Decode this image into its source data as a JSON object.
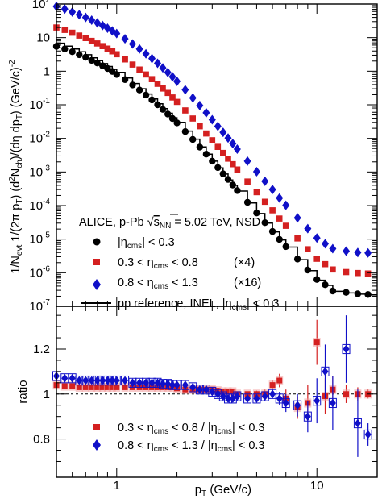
{
  "chart_data": [
    {
      "type": "scatter",
      "panel": "spectra",
      "x_scale": "log",
      "y_scale": "log",
      "xlim": [
        0.5,
        20
      ],
      "ylim": [
        1e-07,
        100
      ],
      "ylabel_parts": {
        "main": "1/N",
        "sub1": "evt",
        "mid1": " 1/(2π p",
        "sub2": "T",
        "mid2": ") (d",
        "sup1": "2",
        "mid3": "N",
        "sub3": "ch",
        "mid4": ")/(dη dp",
        "sub4": "T",
        "mid5": ") (GeV/c)",
        "sup2": "-2"
      },
      "y_tick_labels": [
        {
          "v": 1e-07,
          "base": "10",
          "exp": "-7"
        },
        {
          "v": 1e-06,
          "base": "10",
          "exp": "-6"
        },
        {
          "v": 1e-05,
          "base": "10",
          "exp": "-5"
        },
        {
          "v": 0.0001,
          "base": "10",
          "exp": "-4"
        },
        {
          "v": 0.001,
          "base": "10",
          "exp": "-3"
        },
        {
          "v": 0.01,
          "base": "10",
          "exp": "-2"
        },
        {
          "v": 0.1,
          "base": "10",
          "exp": "-1"
        },
        {
          "v": 1,
          "base": "1",
          "exp": ""
        },
        {
          "v": 10,
          "base": "10",
          "exp": ""
        },
        {
          "v": 100,
          "base": "10",
          "exp": "2"
        }
      ],
      "legend": {
        "title_pre": "ALICE, p-Pb ",
        "title_sqrt": "s",
        "title_sub": "NN",
        "title_post": " = 5.02 TeV, NSD",
        "entries": [
          {
            "marker": "circle",
            "color": "#000000",
            "label_pre": "|η",
            "label_sub": "cms",
            "label_post": "| < 0.3",
            "factor": ""
          },
          {
            "marker": "square",
            "color": "#d42020",
            "label_pre": "0.3 < η",
            "label_sub": "cms",
            "label_post": " < 0.8",
            "factor": "(×4)"
          },
          {
            "marker": "diamond",
            "color": "#1010c8",
            "label_pre": "0.8 < η",
            "label_sub": "cms",
            "label_post": " < 1.3",
            "factor": "(×16)"
          },
          {
            "marker": "line",
            "color": "#000000",
            "label_pre": "pp reference, INEL, |η",
            "label_sub": "cms",
            "label_post": "| < 0.3",
            "factor": ""
          }
        ]
      },
      "series": [
        {
          "name": "|ηcms| < 0.3",
          "color": "#000000",
          "marker": "circle",
          "x": [
            0.5,
            0.55,
            0.6,
            0.65,
            0.7,
            0.75,
            0.8,
            0.85,
            0.9,
            0.95,
            1.0,
            1.1,
            1.2,
            1.3,
            1.4,
            1.5,
            1.6,
            1.7,
            1.8,
            1.9,
            2.0,
            2.2,
            2.4,
            2.6,
            2.8,
            3.0,
            3.2,
            3.4,
            3.6,
            3.8,
            4.0,
            4.5,
            5.0,
            5.5,
            6.0,
            6.5,
            7.0,
            8.0,
            9.0,
            10.0,
            11.0,
            12.0,
            14.0,
            16.0,
            18.0
          ],
          "y": [
            5.5,
            4.6,
            3.8,
            3.1,
            2.6,
            2.1,
            1.75,
            1.45,
            1.2,
            0.98,
            0.8,
            0.56,
            0.39,
            0.275,
            0.195,
            0.14,
            0.1,
            0.073,
            0.053,
            0.039,
            0.029,
            0.016,
            0.0093,
            0.0055,
            0.0034,
            0.0021,
            0.00135,
            0.00088,
            0.0006,
            0.00041,
            0.00028,
            0.000125,
            6e-05,
            3.1e-05,
            1.7e-05,
            9.8e-06,
            6e-06,
            2.55e-06,
            1.2e-06,
            6.3e-07,
            4.4e-07,
            2.85e-07,
            2.6e-07,
            2.35e-07,
            2.25e-07
          ]
        },
        {
          "name": "0.3 < ηcms < 0.8 (×4)",
          "color": "#d42020",
          "marker": "square",
          "x": [
            0.5,
            0.55,
            0.6,
            0.65,
            0.7,
            0.75,
            0.8,
            0.85,
            0.9,
            0.95,
            1.0,
            1.1,
            1.2,
            1.3,
            1.4,
            1.5,
            1.6,
            1.7,
            1.8,
            1.9,
            2.0,
            2.2,
            2.4,
            2.6,
            2.8,
            3.0,
            3.2,
            3.4,
            3.6,
            3.8,
            4.0,
            4.5,
            5.0,
            5.5,
            6.0,
            6.5,
            7.0,
            8.0,
            9.0,
            10.0,
            11.0,
            12.0,
            14.0,
            16.0,
            18.0
          ],
          "y": [
            20,
            17,
            14,
            11.5,
            9.7,
            8.0,
            6.7,
            5.6,
            4.7,
            3.9,
            3.2,
            2.25,
            1.58,
            1.12,
            0.8,
            0.58,
            0.42,
            0.305,
            0.225,
            0.165,
            0.122,
            0.068,
            0.039,
            0.023,
            0.014,
            0.0088,
            0.0056,
            0.0037,
            0.0025,
            0.0017,
            0.00118,
            0.00052,
            0.00025,
            0.00013,
            7.2e-05,
            4.1e-05,
            2.5e-05,
            1.05e-05,
            5e-06,
            2.6e-06,
            1.8e-06,
            1.25e-06,
            1.05e-06,
            9.8e-07,
            9.5e-07
          ]
        },
        {
          "name": "0.8 < ηcms < 1.3 (×16)",
          "color": "#1010c8",
          "marker": "diamond",
          "x": [
            0.5,
            0.55,
            0.6,
            0.65,
            0.7,
            0.75,
            0.8,
            0.85,
            0.9,
            0.95,
            1.0,
            1.1,
            1.2,
            1.3,
            1.4,
            1.5,
            1.6,
            1.7,
            1.8,
            1.9,
            2.0,
            2.2,
            2.4,
            2.6,
            2.8,
            3.0,
            3.2,
            3.4,
            3.6,
            3.8,
            4.0,
            4.5,
            5.0,
            5.5,
            6.0,
            6.5,
            7.0,
            8.0,
            9.0,
            10.0,
            11.0,
            12.0,
            14.0,
            16.0,
            18.0
          ],
          "y": [
            85,
            71,
            58,
            48,
            40,
            33,
            27.5,
            23,
            19,
            15.8,
            13.2,
            9.2,
            6.5,
            4.6,
            3.3,
            2.38,
            1.72,
            1.25,
            0.92,
            0.68,
            0.5,
            0.28,
            0.16,
            0.095,
            0.058,
            0.036,
            0.023,
            0.0152,
            0.0102,
            0.007,
            0.0048,
            0.0021,
            0.00102,
            0.00053,
            0.0003,
            0.000168,
            0.000102,
            4.3e-05,
            2.05e-05,
            1.08e-05,
            7.3e-06,
            5.2e-06,
            4.4e-06,
            4e-06,
            3.9e-06
          ]
        },
        {
          "name": "pp reference, INEL, |ηcms| < 0.3",
          "color": "#000000",
          "marker": "line",
          "x": [
            0.5,
            0.55,
            0.6,
            0.65,
            0.7,
            0.75,
            0.8,
            0.85,
            0.9,
            0.95,
            1.0,
            1.1,
            1.2,
            1.3,
            1.4,
            1.5,
            1.6,
            1.7,
            1.8,
            1.9,
            2.0,
            2.2,
            2.4,
            2.6,
            2.8,
            3.0,
            3.2,
            3.4,
            3.6,
            3.8,
            4.0,
            4.5,
            5.0,
            5.5,
            6.0,
            6.5,
            7.0,
            8.0,
            9.0,
            10.0,
            11.0,
            12.0,
            14.0,
            16.0,
            18.0,
            20.0
          ],
          "y": [
            6.8,
            5.6,
            4.6,
            3.8,
            3.1,
            2.5,
            2.05,
            1.68,
            1.38,
            1.13,
            0.92,
            0.63,
            0.43,
            0.3,
            0.21,
            0.15,
            0.107,
            0.077,
            0.056,
            0.041,
            0.03,
            0.0165,
            0.0095,
            0.0056,
            0.0034,
            0.0021,
            0.00133,
            0.00087,
            0.00058,
            0.0004,
            0.00027,
            0.00012,
            5.8e-05,
            3e-05,
            1.65e-05,
            9.5e-06,
            5.8e-06,
            2.45e-06,
            1.15e-06,
            6e-07,
            4.2e-07,
            2.8e-07,
            2.5e-07,
            2.3e-07,
            2.2e-07,
            2.2e-07
          ]
        }
      ]
    },
    {
      "type": "scatter",
      "panel": "ratio",
      "x_scale": "log",
      "xlim": [
        0.5,
        20
      ],
      "ylim": [
        0.63,
        1.39
      ],
      "ylabel": "ratio",
      "xlabel_main": "p",
      "xlabel_sub": "T",
      "xlabel_post": " (GeV/c)",
      "x_tick_labels": [
        {
          "v": 1,
          "label": "1"
        },
        {
          "v": 10,
          "label": "10"
        }
      ],
      "y_tick_labels": [
        {
          "v": 0.8,
          "label": "0.8"
        },
        {
          "v": 1.0,
          "label": "1"
        },
        {
          "v": 1.2,
          "label": "1.2"
        }
      ],
      "reference_line": 1.0,
      "legend": {
        "entries": [
          {
            "marker": "square",
            "color": "#d42020",
            "label_pre": "0.3 < η",
            "label_sub1": "cms",
            "label_mid": " < 0.8 / |η",
            "label_sub2": "cms",
            "label_post": "| < 0.3"
          },
          {
            "marker": "diamond",
            "color": "#1010c8",
            "label_pre": "0.8 < η",
            "label_sub1": "cms",
            "label_mid": " < 1.3 / |η",
            "label_sub2": "cms",
            "label_post": "| < 0.3"
          }
        ]
      },
      "series": [
        {
          "name": "0.3 < ηcms < 0.8 / |ηcms| < 0.3",
          "color": "#d42020",
          "marker": "square",
          "x": [
            0.5,
            0.55,
            0.6,
            0.65,
            0.7,
            0.75,
            0.8,
            0.85,
            0.9,
            0.95,
            1.0,
            1.1,
            1.2,
            1.3,
            1.4,
            1.5,
            1.6,
            1.7,
            1.8,
            1.9,
            2.0,
            2.2,
            2.4,
            2.6,
            2.8,
            3.0,
            3.2,
            3.4,
            3.6,
            3.8,
            4.0,
            4.5,
            5.0,
            5.5,
            6.0,
            6.5,
            7.0,
            8.0,
            9.0,
            10.0,
            11.0,
            12.0,
            14.0,
            16.0,
            18.0
          ],
          "y": [
            1.04,
            1.035,
            1.035,
            1.03,
            1.03,
            1.03,
            1.03,
            1.03,
            1.03,
            1.03,
            1.03,
            1.03,
            1.03,
            1.03,
            1.03,
            1.03,
            1.03,
            1.03,
            1.03,
            1.03,
            1.025,
            1.02,
            1.02,
            1.02,
            1.02,
            1.02,
            1.015,
            1.01,
            1.01,
            1.01,
            1.0,
            1.0,
            1.0,
            1.0,
            1.04,
            1.06,
            0.98,
            0.94,
            0.96,
            1.23,
            0.99,
            1.02,
            1.0,
            1.0,
            1.0
          ],
          "err": [
            0.01,
            0.01,
            0.01,
            0.01,
            0.01,
            0.01,
            0.01,
            0.01,
            0.01,
            0.01,
            0.01,
            0.01,
            0.01,
            0.01,
            0.01,
            0.01,
            0.01,
            0.01,
            0.01,
            0.01,
            0.01,
            0.01,
            0.01,
            0.01,
            0.01,
            0.01,
            0.01,
            0.01,
            0.01,
            0.01,
            0.01,
            0.01,
            0.015,
            0.02,
            0.02,
            0.03,
            0.04,
            0.05,
            0.08,
            0.1,
            0.08,
            0.06,
            0.04,
            0.03,
            0.02
          ]
        },
        {
          "name": "0.8 < ηcms < 1.3 / |ηcms| < 0.3",
          "color": "#1010c8",
          "marker": "diamond",
          "x": [
            0.5,
            0.55,
            0.6,
            0.65,
            0.7,
            0.75,
            0.8,
            0.85,
            0.9,
            0.95,
            1.0,
            1.1,
            1.2,
            1.3,
            1.4,
            1.5,
            1.6,
            1.7,
            1.8,
            1.9,
            2.0,
            2.2,
            2.4,
            2.6,
            2.8,
            3.0,
            3.2,
            3.4,
            3.6,
            3.8,
            4.0,
            4.5,
            5.0,
            5.5,
            6.0,
            6.5,
            7.0,
            8.0,
            9.0,
            10.0,
            11.0,
            12.0,
            14.0,
            16.0,
            18.0
          ],
          "y": [
            1.08,
            1.07,
            1.07,
            1.06,
            1.06,
            1.06,
            1.06,
            1.06,
            1.06,
            1.06,
            1.06,
            1.06,
            1.05,
            1.05,
            1.05,
            1.05,
            1.05,
            1.045,
            1.045,
            1.04,
            1.04,
            1.04,
            1.03,
            1.02,
            1.02,
            1.01,
            1.0,
            0.99,
            0.98,
            0.98,
            0.99,
            0.98,
            0.98,
            0.99,
            1.0,
            0.98,
            0.96,
            0.95,
            0.9,
            0.97,
            1.1,
            0.96,
            1.2,
            0.87,
            0.82
          ],
          "err": [
            0.01,
            0.01,
            0.01,
            0.01,
            0.01,
            0.01,
            0.01,
            0.01,
            0.01,
            0.01,
            0.01,
            0.01,
            0.01,
            0.01,
            0.01,
            0.01,
            0.01,
            0.01,
            0.01,
            0.01,
            0.01,
            0.01,
            0.01,
            0.01,
            0.01,
            0.01,
            0.01,
            0.01,
            0.01,
            0.01,
            0.01,
            0.01,
            0.015,
            0.02,
            0.02,
            0.03,
            0.04,
            0.05,
            0.07,
            0.1,
            0.12,
            0.12,
            0.15,
            0.15,
            0.05
          ]
        }
      ]
    }
  ]
}
